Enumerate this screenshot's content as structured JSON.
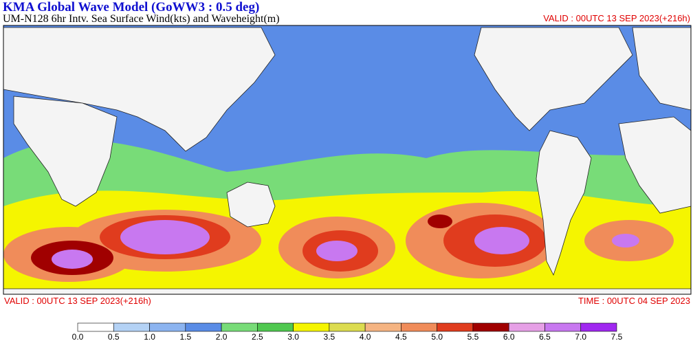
{
  "header": {
    "title": "KMA  Global Wave Model (GoWW3 : 0.5 deg)",
    "subtitle": "UM-N128  6hr Intv. Sea Surface Wind(kts) and Waveheight(m)",
    "valid": "VALID : 00UTC 13 SEP 2023(+216h)"
  },
  "footer": {
    "valid": "VALID : 00UTC 13 SEP 2023(+216h)",
    "time": "TIME : 00UTC 04 SEP 2023"
  },
  "colorbar": {
    "labels": [
      "0.0",
      "0.5",
      "1.0",
      "1.5",
      "2.0",
      "2.5",
      "3.0",
      "3.5",
      "4.0",
      "4.5",
      "5.0",
      "5.5",
      "6.0",
      "6.5",
      "7.0",
      "7.5"
    ],
    "colors": [
      "#ffffff",
      "#b4d2f5",
      "#8cb4f0",
      "#5a8ce6",
      "#78dc78",
      "#50c850",
      "#f5f500",
      "#dcdc50",
      "#f5b482",
      "#f08c5a",
      "#e03c1e",
      "#a00000",
      "#e6a0e6",
      "#c878f0",
      "#a028f0"
    ]
  }
}
